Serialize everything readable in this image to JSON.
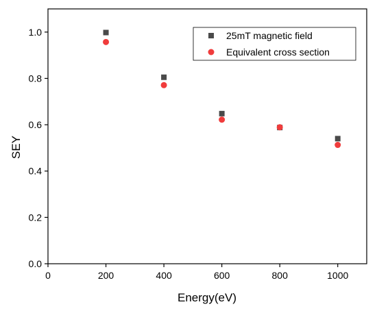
{
  "chart_data": {
    "type": "scatter",
    "title": "",
    "xlabel": "Energy(eV)",
    "ylabel": "SEY",
    "xlim": [
      0,
      1100
    ],
    "ylim": [
      0.0,
      1.1
    ],
    "xticks": [
      0,
      200,
      400,
      600,
      800,
      1000
    ],
    "yticks": [
      0.0,
      0.2,
      0.4,
      0.6,
      0.8,
      1.0
    ],
    "xtick_labels": [
      "0",
      "200",
      "400",
      "600",
      "800",
      "1000"
    ],
    "ytick_labels": [
      "0.0",
      "0.2",
      "0.4",
      "0.6",
      "0.8",
      "1.0"
    ],
    "grid": false,
    "legend_position": "top-right",
    "series": [
      {
        "name": "25mT magnetic field",
        "marker": "square",
        "color": "#4a4a4a",
        "x": [
          200,
          400,
          600,
          800,
          1000
        ],
        "y": [
          0.998,
          0.805,
          0.648,
          0.588,
          0.54
        ]
      },
      {
        "name": "Equivalent cross section",
        "marker": "circle",
        "color": "#f03c3c",
        "x": [
          200,
          400,
          600,
          800,
          1000
        ],
        "y": [
          0.957,
          0.771,
          0.622,
          0.589,
          0.513
        ]
      }
    ]
  }
}
